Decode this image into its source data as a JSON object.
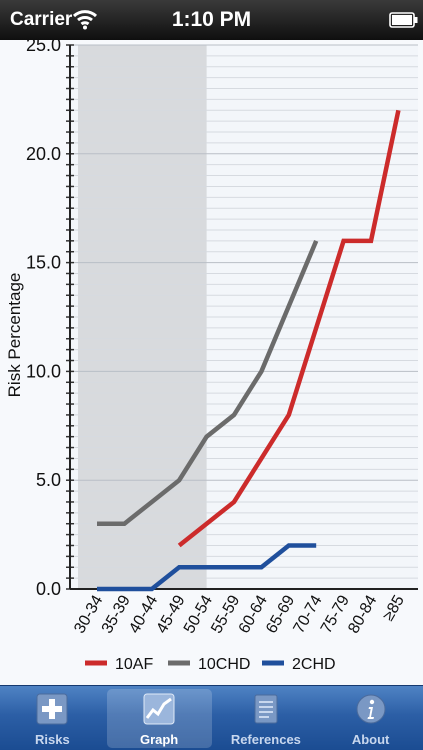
{
  "status_bar": {
    "carrier": "Carrier",
    "time": "1:10 PM"
  },
  "chart_data": {
    "type": "line",
    "title": "",
    "xlabel": "",
    "ylabel": "Risk Percentage",
    "ylim": [
      0,
      25
    ],
    "y_ticks": [
      "0.0",
      "5.0",
      "10.0",
      "15.0",
      "20.0",
      "25.0"
    ],
    "categories": [
      "30-34",
      "35-39",
      "40-44",
      "45-49",
      "50-54",
      "55-59",
      "60-64",
      "65-69",
      "70-74",
      "75-79",
      "80-84",
      "≥85"
    ],
    "shaded_region": {
      "from_category": "30-34",
      "to_category": "50-54"
    },
    "grid": "horizontal",
    "legend_position": "bottom",
    "series": [
      {
        "name": "10AF",
        "color": "#cc2b2b",
        "values": [
          null,
          null,
          null,
          2,
          3,
          4,
          6,
          8,
          12,
          16,
          16,
          22
        ]
      },
      {
        "name": "10CHD",
        "color": "#6b6b6b",
        "values": [
          3,
          3,
          4,
          5,
          7,
          8,
          10,
          13,
          16,
          null,
          null,
          null
        ]
      },
      {
        "name": "2CHD",
        "color": "#1f4f9c",
        "values": [
          0,
          0,
          0,
          1,
          1,
          1,
          1,
          2,
          2,
          null,
          null,
          null
        ]
      }
    ]
  },
  "tabs": [
    {
      "id": "risks",
      "label": "Risks",
      "icon": "plus-icon",
      "selected": false
    },
    {
      "id": "graph",
      "label": "Graph",
      "icon": "line-graph-icon",
      "selected": true
    },
    {
      "id": "references",
      "label": "References",
      "icon": "document-icon",
      "selected": false
    },
    {
      "id": "about",
      "label": "About",
      "icon": "info-icon",
      "selected": false
    }
  ]
}
